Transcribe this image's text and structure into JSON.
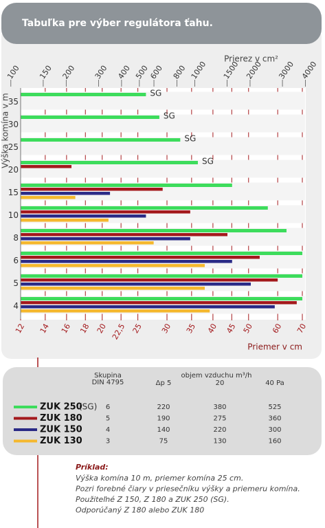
{
  "header": {
    "title": "Tabuľka pre výber regulátora ťahu."
  },
  "chart_data": {
    "type": "hbar",
    "x_label": "Priemer v cm",
    "x2_label": "Prierez v cm²",
    "y_label": "Výška komína v m",
    "categories": [
      "35",
      "30",
      "25",
      "20",
      "15",
      "10",
      "8",
      "6",
      "5",
      "4"
    ],
    "series": [
      {
        "name": "ZUK 250",
        "color": "#3ddc5c",
        "values": [
          26.3,
          28.6,
          32.6,
          36.4,
          45.1,
          56.4,
          63.4,
          70,
          70,
          70
        ],
        "end_labels": [
          "SG",
          "SG",
          "SG",
          "SG",
          null,
          null,
          null,
          null,
          null,
          null
        ]
      },
      {
        "name": "ZUK 180",
        "color": "#a3191c",
        "values": [
          null,
          null,
          null,
          16.5,
          29.2,
          34.7,
          43.8,
          53.6,
          60,
          67.6
        ]
      },
      {
        "name": "ZUK 150",
        "color": "#2a2a86",
        "values": [
          null,
          null,
          null,
          null,
          21,
          26.3,
          34.7,
          45.1,
          50.7,
          58.9
        ]
      },
      {
        "name": "ZUK 130",
        "color": "#f5b82e",
        "values": [
          null,
          null,
          null,
          null,
          16.9,
          20.8,
          27.6,
          38,
          38,
          39.2
        ]
      }
    ],
    "xlim": [
      12,
      70
    ],
    "x_log": true,
    "xticks": [
      12,
      14,
      16,
      18,
      20,
      {
        "value": 22.5,
        "label": "22,5"
      },
      25,
      30,
      35,
      40,
      45,
      50,
      60,
      70
    ],
    "x2lim": [
      113,
      3848
    ],
    "x2_log": true,
    "x2ticks": [
      100,
      150,
      200,
      300,
      400,
      500,
      600,
      800,
      1000,
      1500,
      2000,
      3000,
      4000
    ],
    "grid_color": "#a3191c"
  },
  "table": {
    "group_header": [
      "Skupina",
      "DIN 4795"
    ],
    "flow_header": "objem vzduchu m³/h",
    "columns": [
      "Δp 5",
      "20",
      "40 Pa"
    ],
    "rows": [
      {
        "note": "(SG)",
        "cells": [
          "6",
          "220",
          "380",
          "525"
        ]
      },
      {
        "cells": [
          "5",
          "190",
          "275",
          "360"
        ]
      },
      {
        "cells": [
          "4",
          "140",
          "220",
          "300"
        ]
      },
      {
        "cells": [
          "3",
          "75",
          "130",
          "160"
        ]
      }
    ]
  },
  "example": {
    "title": "Príklad:",
    "lines": [
      "Výška komína 10 m, priemer komína 25 cm.",
      "Pozri forebné čiary v priesečníku výšky a priemeru komína.",
      "Použiteľné Z 150, Z 180 a ZUK 250 (SG).",
      "Odporúčaný Z 180 alebo ZUK 180"
    ]
  }
}
